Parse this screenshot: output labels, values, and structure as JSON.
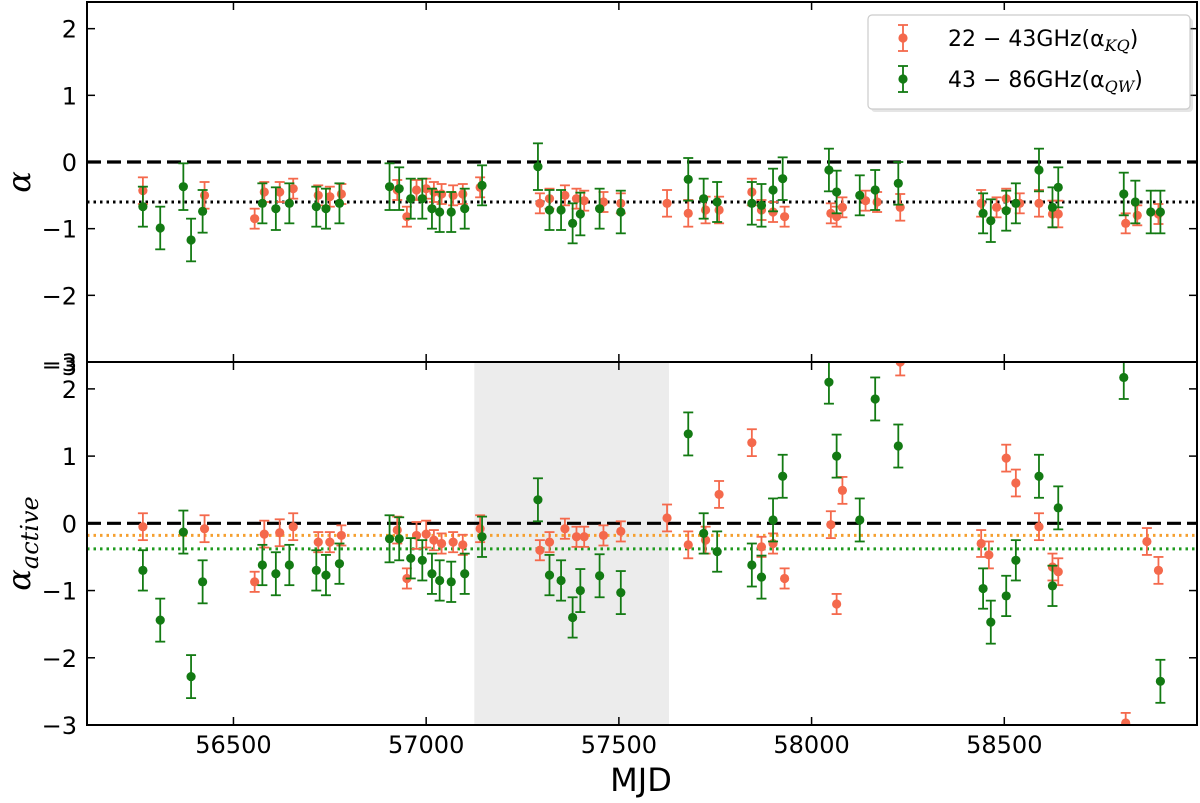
{
  "chart_data": [
    {
      "type": "scatter",
      "panel": "top",
      "ylabel": "α",
      "xlabel": "",
      "xlim": [
        56120,
        59000
      ],
      "ylim": [
        -3,
        2.4
      ],
      "yticks": [
        -3,
        -2,
        -1,
        0,
        1,
        2
      ],
      "hlines": [
        {
          "y": 0,
          "style": "dashed",
          "color": "#000000"
        },
        {
          "y": -0.6,
          "style": "dotted",
          "color": "#000000"
        }
      ],
      "legend": {
        "placement": "top-right",
        "entries": [
          {
            "range": "22 − 43GHz(α",
            "sub": "KQ",
            "close": ")",
            "color": "#f4694c"
          },
          {
            "range": "43 − 86GHz(α",
            "sub": "QW",
            "close": ")",
            "color": "#137a13"
          }
        ]
      },
      "series": [
        {
          "color": "#f4694c",
          "points": [
            [
              56265,
              -0.43,
              0.2
            ],
            [
              56425,
              -0.5,
              0.2
            ],
            [
              56555,
              -0.85,
              0.15
            ],
            [
              56580,
              -0.45,
              0.15
            ],
            [
              56620,
              -0.45,
              0.15
            ],
            [
              56655,
              -0.4,
              0.15
            ],
            [
              56720,
              -0.5,
              0.15
            ],
            [
              56750,
              -0.52,
              0.15
            ],
            [
              56780,
              -0.48,
              0.15
            ],
            [
              56925,
              -0.42,
              0.15
            ],
            [
              56950,
              -0.82,
              0.15
            ],
            [
              56975,
              -0.42,
              0.15
            ],
            [
              57000,
              -0.4,
              0.15
            ],
            [
              57020,
              -0.45,
              0.15
            ],
            [
              57040,
              -0.48,
              0.15
            ],
            [
              57070,
              -0.5,
              0.15
            ],
            [
              57095,
              -0.48,
              0.15
            ],
            [
              57140,
              -0.38,
              0.15
            ],
            [
              57295,
              -0.62,
              0.15
            ],
            [
              57320,
              -0.55,
              0.15
            ],
            [
              57360,
              -0.5,
              0.15
            ],
            [
              57390,
              -0.55,
              0.15
            ],
            [
              57410,
              -0.58,
              0.15
            ],
            [
              57460,
              -0.6,
              0.15
            ],
            [
              57505,
              -0.62,
              0.15
            ],
            [
              57625,
              -0.62,
              0.2
            ],
            [
              57680,
              -0.77,
              0.2
            ],
            [
              57725,
              -0.72,
              0.2
            ],
            [
              57760,
              -0.72,
              0.2
            ],
            [
              57845,
              -0.45,
              0.2
            ],
            [
              57870,
              -0.72,
              0.15
            ],
            [
              57900,
              -0.75,
              0.15
            ],
            [
              57930,
              -0.82,
              0.15
            ],
            [
              58050,
              -0.77,
              0.15
            ],
            [
              58065,
              -0.82,
              0.15
            ],
            [
              58080,
              -0.68,
              0.15
            ],
            [
              58140,
              -0.58,
              0.15
            ],
            [
              58170,
              -0.6,
              0.15
            ],
            [
              58230,
              -0.68,
              0.2
            ],
            [
              58440,
              -0.62,
              0.2
            ],
            [
              58480,
              -0.68,
              0.15
            ],
            [
              58505,
              -0.55,
              0.15
            ],
            [
              58540,
              -0.62,
              0.15
            ],
            [
              58590,
              -0.62,
              0.2
            ],
            [
              58625,
              -0.78,
              0.2
            ],
            [
              58640,
              -0.78,
              0.2
            ],
            [
              58815,
              -0.92,
              0.15
            ],
            [
              58845,
              -0.8,
              0.15
            ],
            [
              58900,
              -0.78,
              0.15
            ]
          ]
        },
        {
          "color": "#137a13",
          "points": [
            [
              56265,
              -0.67,
              0.3
            ],
            [
              56310,
              -0.99,
              0.32
            ],
            [
              56370,
              -0.37,
              0.35
            ],
            [
              56390,
              -1.17,
              0.32
            ],
            [
              56420,
              -0.74,
              0.32
            ],
            [
              56575,
              -0.62,
              0.3
            ],
            [
              56610,
              -0.7,
              0.32
            ],
            [
              56645,
              -0.62,
              0.3
            ],
            [
              56715,
              -0.67,
              0.3
            ],
            [
              56740,
              -0.7,
              0.3
            ],
            [
              56775,
              -0.62,
              0.3
            ],
            [
              56905,
              -0.37,
              0.35
            ],
            [
              56930,
              -0.4,
              0.32
            ],
            [
              56960,
              -0.55,
              0.3
            ],
            [
              56990,
              -0.55,
              0.3
            ],
            [
              57015,
              -0.7,
              0.3
            ],
            [
              57035,
              -0.75,
              0.3
            ],
            [
              57065,
              -0.75,
              0.3
            ],
            [
              57100,
              -0.7,
              0.3
            ],
            [
              57145,
              -0.35,
              0.3
            ],
            [
              57290,
              -0.07,
              0.35
            ],
            [
              57320,
              -0.72,
              0.3
            ],
            [
              57350,
              -0.72,
              0.3
            ],
            [
              57380,
              -0.92,
              0.3
            ],
            [
              57400,
              -0.78,
              0.32
            ],
            [
              57450,
              -0.7,
              0.3
            ],
            [
              57505,
              -0.75,
              0.32
            ],
            [
              57680,
              -0.26,
              0.32
            ],
            [
              57720,
              -0.55,
              0.3
            ],
            [
              57755,
              -0.6,
              0.3
            ],
            [
              57845,
              -0.62,
              0.32
            ],
            [
              57870,
              -0.65,
              0.32
            ],
            [
              57900,
              -0.42,
              0.32
            ],
            [
              57925,
              -0.25,
              0.32
            ],
            [
              58045,
              -0.12,
              0.32
            ],
            [
              58065,
              -0.45,
              0.32
            ],
            [
              58125,
              -0.5,
              0.3
            ],
            [
              58165,
              -0.42,
              0.3
            ],
            [
              58225,
              -0.32,
              0.32
            ],
            [
              58445,
              -0.77,
              0.3
            ],
            [
              58465,
              -0.88,
              0.32
            ],
            [
              58505,
              -0.73,
              0.3
            ],
            [
              58530,
              -0.62,
              0.3
            ],
            [
              58590,
              -0.12,
              0.32
            ],
            [
              58625,
              -0.68,
              0.3
            ],
            [
              58640,
              -0.38,
              0.3
            ],
            [
              58810,
              -0.48,
              0.32
            ],
            [
              58840,
              -0.6,
              0.32
            ],
            [
              58880,
              -0.75,
              0.32
            ],
            [
              58905,
              -0.75,
              0.32
            ]
          ]
        }
      ]
    },
    {
      "type": "scatter",
      "panel": "bottom",
      "ylabel": "α",
      "ylabel_sub": "active",
      "xlabel": "MJD",
      "xlim": [
        56120,
        59000
      ],
      "ylim": [
        -3,
        2.4
      ],
      "yticks": [
        -3,
        -2,
        -1,
        0,
        1,
        2
      ],
      "top_tick_label": "−3",
      "xticks": [
        56500,
        57000,
        57500,
        58000,
        58500
      ],
      "shaded_region": [
        57125,
        57630
      ],
      "hlines": [
        {
          "y": 0,
          "style": "dashed",
          "color": "#000000"
        },
        {
          "y": -0.18,
          "style": "dotted",
          "color": "#f5a030"
        },
        {
          "y": -0.38,
          "style": "dotted",
          "color": "#1f9a1f"
        }
      ],
      "series": [
        {
          "color": "#f4694c",
          "points": [
            [
              56265,
              -0.05,
              0.2
            ],
            [
              56425,
              -0.08,
              0.2
            ],
            [
              56555,
              -0.87,
              0.15
            ],
            [
              56580,
              -0.16,
              0.2
            ],
            [
              56620,
              -0.14,
              0.2
            ],
            [
              56655,
              -0.05,
              0.2
            ],
            [
              56720,
              -0.28,
              0.15
            ],
            [
              56750,
              -0.28,
              0.15
            ],
            [
              56780,
              -0.18,
              0.15
            ],
            [
              56925,
              -0.1,
              0.2
            ],
            [
              56950,
              -0.82,
              0.15
            ],
            [
              56975,
              -0.18,
              0.2
            ],
            [
              57000,
              -0.16,
              0.2
            ],
            [
              57020,
              -0.25,
              0.15
            ],
            [
              57040,
              -0.3,
              0.15
            ],
            [
              57070,
              -0.28,
              0.15
            ],
            [
              57095,
              -0.32,
              0.15
            ],
            [
              57140,
              -0.08,
              0.2
            ],
            [
              57295,
              -0.4,
              0.15
            ],
            [
              57320,
              -0.28,
              0.15
            ],
            [
              57360,
              -0.08,
              0.15
            ],
            [
              57390,
              -0.2,
              0.15
            ],
            [
              57410,
              -0.2,
              0.15
            ],
            [
              57460,
              -0.18,
              0.15
            ],
            [
              57505,
              -0.12,
              0.15
            ],
            [
              57625,
              0.08,
              0.2
            ],
            [
              57680,
              -0.32,
              0.2
            ],
            [
              57725,
              -0.25,
              0.2
            ],
            [
              57760,
              0.43,
              0.2
            ],
            [
              57845,
              1.2,
              0.2
            ],
            [
              57870,
              -0.35,
              0.15
            ],
            [
              57900,
              -0.3,
              0.15
            ],
            [
              57930,
              -0.82,
              0.15
            ],
            [
              58050,
              -0.02,
              0.2
            ],
            [
              58065,
              -1.2,
              0.15
            ],
            [
              58080,
              0.49,
              0.2
            ],
            [
              58230,
              2.4,
              0.2
            ],
            [
              58440,
              -0.3,
              0.2
            ],
            [
              58460,
              -0.47,
              0.2
            ],
            [
              58505,
              0.97,
              0.2
            ],
            [
              58530,
              0.6,
              0.2
            ],
            [
              58590,
              -0.05,
              0.2
            ],
            [
              58625,
              -0.65,
              0.2
            ],
            [
              58640,
              -0.72,
              0.2
            ],
            [
              58815,
              -2.97,
              0.15
            ],
            [
              58870,
              -0.27,
              0.2
            ],
            [
              58900,
              -0.7,
              0.2
            ]
          ]
        },
        {
          "color": "#137a13",
          "points": [
            [
              56265,
              -0.7,
              0.3
            ],
            [
              56310,
              -1.44,
              0.32
            ],
            [
              56370,
              -0.13,
              0.32
            ],
            [
              56390,
              -2.28,
              0.32
            ],
            [
              56420,
              -0.87,
              0.32
            ],
            [
              56575,
              -0.62,
              0.3
            ],
            [
              56610,
              -0.75,
              0.32
            ],
            [
              56645,
              -0.62,
              0.3
            ],
            [
              56715,
              -0.7,
              0.3
            ],
            [
              56740,
              -0.77,
              0.3
            ],
            [
              56775,
              -0.6,
              0.3
            ],
            [
              56905,
              -0.23,
              0.35
            ],
            [
              56930,
              -0.23,
              0.32
            ],
            [
              56960,
              -0.52,
              0.3
            ],
            [
              56990,
              -0.55,
              0.3
            ],
            [
              57015,
              -0.75,
              0.3
            ],
            [
              57035,
              -0.85,
              0.3
            ],
            [
              57065,
              -0.87,
              0.3
            ],
            [
              57100,
              -0.75,
              0.3
            ],
            [
              57145,
              -0.2,
              0.3
            ],
            [
              57290,
              0.35,
              0.32
            ],
            [
              57320,
              -0.77,
              0.3
            ],
            [
              57350,
              -0.85,
              0.3
            ],
            [
              57380,
              -1.4,
              0.3
            ],
            [
              57400,
              -1.0,
              0.32
            ],
            [
              57450,
              -0.78,
              0.32
            ],
            [
              57505,
              -1.03,
              0.32
            ],
            [
              57680,
              1.33,
              0.32
            ],
            [
              57720,
              -0.15,
              0.3
            ],
            [
              57755,
              -0.42,
              0.3
            ],
            [
              57845,
              -0.62,
              0.32
            ],
            [
              57870,
              -0.8,
              0.32
            ],
            [
              57900,
              0.05,
              0.32
            ],
            [
              57925,
              0.7,
              0.32
            ],
            [
              58045,
              2.1,
              0.32
            ],
            [
              58065,
              1.0,
              0.32
            ],
            [
              58125,
              0.05,
              0.32
            ],
            [
              58165,
              1.85,
              0.32
            ],
            [
              58225,
              1.15,
              0.32
            ],
            [
              58445,
              -0.97,
              0.3
            ],
            [
              58465,
              -1.47,
              0.32
            ],
            [
              58505,
              -1.08,
              0.3
            ],
            [
              58530,
              -0.55,
              0.3
            ],
            [
              58590,
              0.7,
              0.32
            ],
            [
              58625,
              -0.93,
              0.3
            ],
            [
              58640,
              0.23,
              0.32
            ],
            [
              58810,
              2.17,
              0.32
            ],
            [
              58905,
              -2.35,
              0.32
            ]
          ]
        }
      ]
    }
  ]
}
